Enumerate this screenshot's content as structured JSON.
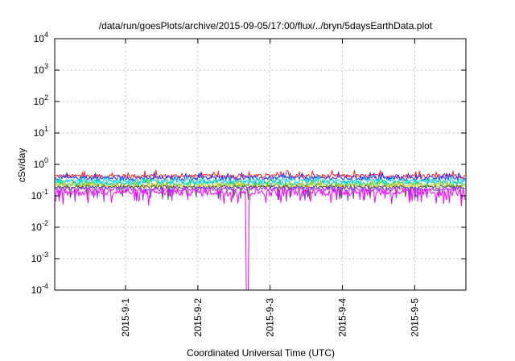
{
  "chart_data": {
    "type": "line",
    "title": "/data/run/goesPlots/archive/2015-09-05/17:00/flux/../bryn/5daysEarthData.plot",
    "xlabel": "Coordinated Universal Time (UTC)",
    "ylabel": "cSv/day",
    "yscale": "log",
    "ylim": [
      0.0001,
      10000
    ],
    "xlim": [
      "2015-08-31T00:30",
      "2015-09-05T17:00"
    ],
    "y_ticks": [
      {
        "base": "10",
        "exp": "4",
        "value": 10000
      },
      {
        "base": "10",
        "exp": "3",
        "value": 1000
      },
      {
        "base": "10",
        "exp": "2",
        "value": 100
      },
      {
        "base": "10",
        "exp": "1",
        "value": 10
      },
      {
        "base": "10",
        "exp": "0",
        "value": 1
      },
      {
        "base": "10",
        "exp": "-1",
        "value": 0.1
      },
      {
        "base": "10",
        "exp": "-2",
        "value": 0.01
      },
      {
        "base": "10",
        "exp": "-3",
        "value": 0.001
      },
      {
        "base": "10",
        "exp": "-4",
        "value": 0.0001
      }
    ],
    "x_ticks": [
      {
        "label": "2015-9-1",
        "value": "2015-09-01T00:00"
      },
      {
        "label": "2015-9-2",
        "value": "2015-09-02T00:00"
      },
      {
        "label": "2015-9-3",
        "value": "2015-09-03T00:00"
      },
      {
        "label": "2015-9-4",
        "value": "2015-09-04T00:00"
      },
      {
        "label": "2015-9-5",
        "value": "2015-09-05T00:00"
      }
    ],
    "grid": true,
    "series": [
      {
        "color": "#ff2020",
        "level": 0.42,
        "spread": 0.13
      },
      {
        "color": "#2030ff",
        "level": 0.36,
        "spread": 0.12
      },
      {
        "color": "#00c8ff",
        "level": 0.29,
        "spread": 0.09
      },
      {
        "color": "#00d890",
        "level": 0.24,
        "spread": 0.08
      },
      {
        "color": "#c8c800",
        "level": 0.21,
        "spread": 0.06
      },
      {
        "color": "#505050",
        "level": 0.19,
        "spread": 0.05
      },
      {
        "color": "#9b30ff",
        "level": 0.165,
        "spread": 0.05
      },
      {
        "color": "#ff00ff",
        "level": 0.13,
        "spread": 0.07,
        "dip": {
          "x": "2015-09-02T16:30",
          "value": 0.0001
        }
      }
    ]
  }
}
